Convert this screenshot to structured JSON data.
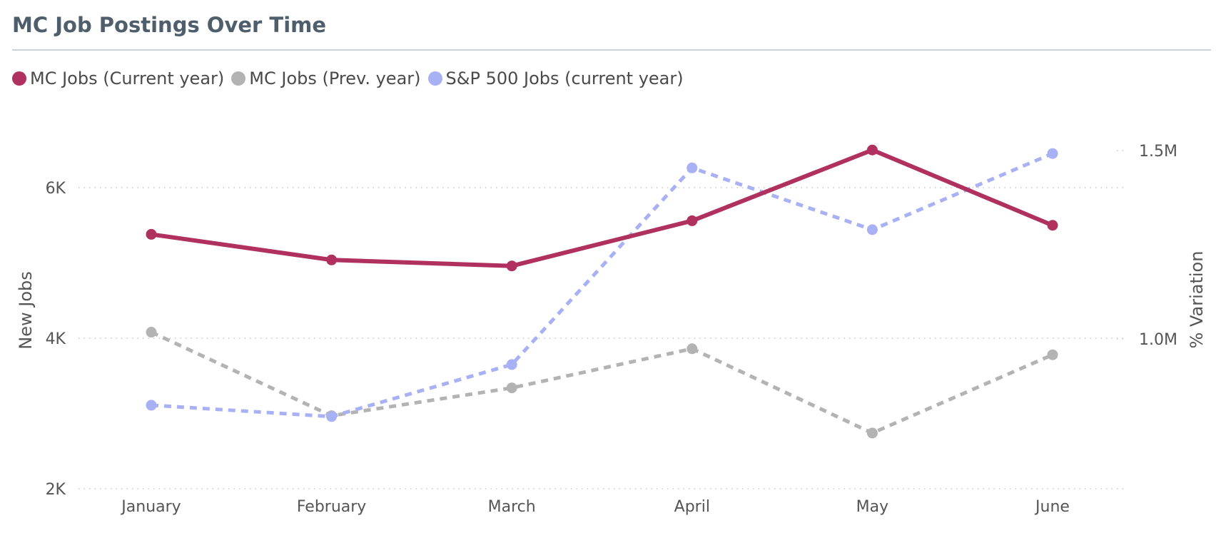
{
  "title": "MC Job Postings Over Time",
  "chart_data": {
    "type": "line",
    "title": "MC Job Postings Over Time",
    "categories": [
      "January",
      "February",
      "March",
      "April",
      "May",
      "June"
    ],
    "y_left": {
      "label": "New Jobs",
      "range": [
        2000,
        7000
      ],
      "ticks": [
        2000,
        4000,
        6000
      ],
      "tick_labels": [
        "2K",
        "4K",
        "6K"
      ]
    },
    "y_right": {
      "label": "% Variation",
      "range": [
        600000,
        1600000
      ],
      "ticks": [
        1000000,
        1500000
      ],
      "tick_labels": [
        "1.0M",
        "1.5M"
      ]
    },
    "grid": true,
    "legend_position": "top-left",
    "series": [
      {
        "name": "MC Jobs (Current year)",
        "axis": "left",
        "style": "solid",
        "color": "#b0305f",
        "values": [
          5380,
          5040,
          4960,
          5560,
          6500,
          5500
        ]
      },
      {
        "name": "MC Jobs (Prev. year)",
        "axis": "left",
        "style": "dashed",
        "color": "#b3b3b3",
        "values": [
          4080,
          2970,
          3340,
          3860,
          2740,
          3780
        ]
      },
      {
        "name": "S&P 500 Jobs (current year)",
        "axis": "right",
        "style": "dashed",
        "color": "#a9b1f5",
        "values": [
          824000,
          794000,
          932000,
          1454000,
          1290000,
          1492000
        ]
      }
    ]
  }
}
